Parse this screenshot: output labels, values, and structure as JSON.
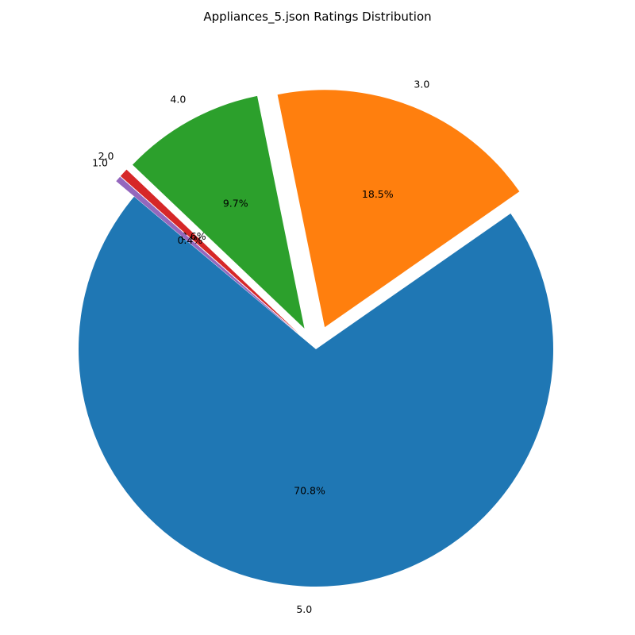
{
  "chart_data": {
    "type": "pie",
    "title": "Appliances_5.json Ratings Distribution",
    "slices": [
      {
        "label": "5.0",
        "value": 70.8,
        "pct_label": "70.8%",
        "color": "#1f77b4",
        "explode": 0.0
      },
      {
        "label": "3.0",
        "value": 18.5,
        "pct_label": "18.5%",
        "color": "#ff7f0e",
        "explode": 0.1
      },
      {
        "label": "4.0",
        "value": 9.7,
        "pct_label": "9.7%",
        "color": "#2ca02c",
        "explode": 0.1
      },
      {
        "label": "2.0",
        "value": 0.6,
        "pct_label": "0.6%",
        "color": "#d62728",
        "explode": 0.1
      },
      {
        "label": "1.0",
        "value": 0.4,
        "pct_label": "0.4%",
        "color": "#9467bd",
        "explode": 0.1
      }
    ]
  }
}
